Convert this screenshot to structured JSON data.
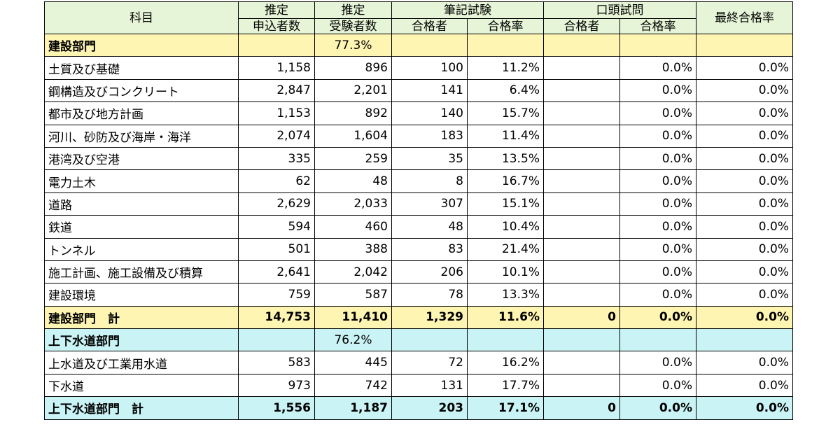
{
  "header": {
    "subject": "科目",
    "applicants_l1": "推定",
    "applicants_l2": "申込者数",
    "examinees_l1": "推定",
    "examinees_l2": "受験者数",
    "written": "筆記試験",
    "oral": "口頭試問",
    "passers": "合格者",
    "pass_rate": "合格率",
    "final_rate": "最終合格率"
  },
  "sections": [
    {
      "name": "建設部門",
      "rate": "77.3%",
      "color": "#fff5b3",
      "rows": [
        {
          "subject": "土質及び基礎",
          "applicants": "1,158",
          "examinees": "896",
          "w_pass": "100",
          "w_rate": "11.2%",
          "o_pass": "",
          "o_rate": "0.0%",
          "final": "0.0%"
        },
        {
          "subject": "鋼構造及びコンクリート",
          "applicants": "2,847",
          "examinees": "2,201",
          "w_pass": "141",
          "w_rate": "6.4%",
          "o_pass": "",
          "o_rate": "0.0%",
          "final": "0.0%"
        },
        {
          "subject": "都市及び地方計画",
          "applicants": "1,153",
          "examinees": "892",
          "w_pass": "140",
          "w_rate": "15.7%",
          "o_pass": "",
          "o_rate": "0.0%",
          "final": "0.0%"
        },
        {
          "subject": "河川、砂防及び海岸・海洋",
          "applicants": "2,074",
          "examinees": "1,604",
          "w_pass": "183",
          "w_rate": "11.4%",
          "o_pass": "",
          "o_rate": "0.0%",
          "final": "0.0%"
        },
        {
          "subject": "港湾及び空港",
          "applicants": "335",
          "examinees": "259",
          "w_pass": "35",
          "w_rate": "13.5%",
          "o_pass": "",
          "o_rate": "0.0%",
          "final": "0.0%"
        },
        {
          "subject": "電力土木",
          "applicants": "62",
          "examinees": "48",
          "w_pass": "8",
          "w_rate": "16.7%",
          "o_pass": "",
          "o_rate": "0.0%",
          "final": "0.0%"
        },
        {
          "subject": "道路",
          "applicants": "2,629",
          "examinees": "2,033",
          "w_pass": "307",
          "w_rate": "15.1%",
          "o_pass": "",
          "o_rate": "0.0%",
          "final": "0.0%"
        },
        {
          "subject": "鉄道",
          "applicants": "594",
          "examinees": "460",
          "w_pass": "48",
          "w_rate": "10.4%",
          "o_pass": "",
          "o_rate": "0.0%",
          "final": "0.0%"
        },
        {
          "subject": "トンネル",
          "applicants": "501",
          "examinees": "388",
          "w_pass": "83",
          "w_rate": "21.4%",
          "o_pass": "",
          "o_rate": "0.0%",
          "final": "0.0%"
        },
        {
          "subject": "施工計画、施工設備及び積算",
          "applicants": "2,641",
          "examinees": "2,042",
          "w_pass": "206",
          "w_rate": "10.1%",
          "o_pass": "",
          "o_rate": "0.0%",
          "final": "0.0%"
        },
        {
          "subject": "建設環境",
          "applicants": "759",
          "examinees": "587",
          "w_pass": "78",
          "w_rate": "13.3%",
          "o_pass": "",
          "o_rate": "0.0%",
          "final": "0.0%"
        }
      ],
      "total": {
        "subject": "建設部門　計",
        "applicants": "14,753",
        "examinees": "11,410",
        "w_pass": "1,329",
        "w_rate": "11.6%",
        "o_pass": "0",
        "o_rate": "0.0%",
        "final": "0.0%"
      }
    },
    {
      "name": "上下水道部門",
      "rate": "76.2%",
      "color": "#c9f3f5",
      "rows": [
        {
          "subject": "上水道及び工業用水道",
          "applicants": "583",
          "examinees": "445",
          "w_pass": "72",
          "w_rate": "16.2%",
          "o_pass": "",
          "o_rate": "0.0%",
          "final": "0.0%"
        },
        {
          "subject": "下水道",
          "applicants": "973",
          "examinees": "742",
          "w_pass": "131",
          "w_rate": "17.7%",
          "o_pass": "",
          "o_rate": "0.0%",
          "final": "0.0%"
        }
      ],
      "total": {
        "subject": "上下水道部門　計",
        "applicants": "1,556",
        "examinees": "1,187",
        "w_pass": "203",
        "w_rate": "17.1%",
        "o_pass": "0",
        "o_rate": "0.0%",
        "final": "0.0%"
      }
    }
  ]
}
